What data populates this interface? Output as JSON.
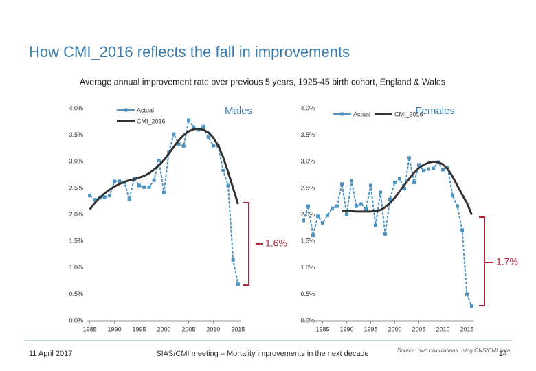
{
  "title": "How CMI_2016 reflects the fall in improvements",
  "subtitle": "Average annual improvement rate over previous 5 years, 1925-45 birth cohort, England & Wales",
  "chart_data": [
    {
      "type": "line",
      "title": "Males",
      "x": [
        1985,
        1986,
        1987,
        1988,
        1989,
        1990,
        1991,
        1992,
        1993,
        1994,
        1995,
        1996,
        1997,
        1998,
        1999,
        2000,
        2001,
        2002,
        2003,
        2004,
        2005,
        2006,
        2007,
        2008,
        2009,
        2010,
        2011,
        2012,
        2013,
        2014,
        2015
      ],
      "series": [
        {
          "name": "Actual",
          "color": "#4f93c2",
          "values": [
            2.36,
            2.28,
            2.32,
            2.33,
            2.36,
            2.63,
            2.63,
            2.61,
            2.29,
            2.68,
            2.55,
            2.52,
            2.52,
            2.65,
            3.02,
            2.42,
            3.17,
            3.52,
            3.33,
            3.29,
            3.78,
            3.65,
            3.6,
            3.66,
            3.46,
            3.3,
            3.29,
            2.83,
            2.55,
            1.15,
            0.69
          ]
        },
        {
          "name": "CMI_2016",
          "color": "#333333",
          "values": [
            2.1,
            2.22,
            2.32,
            2.4,
            2.47,
            2.53,
            2.58,
            2.62,
            2.65,
            2.67,
            2.7,
            2.73,
            2.78,
            2.85,
            2.93,
            3.03,
            3.15,
            3.28,
            3.4,
            3.5,
            3.57,
            3.61,
            3.62,
            3.6,
            3.55,
            3.45,
            3.3,
            3.08,
            2.8,
            2.5,
            2.2
          ]
        }
      ],
      "xlim": [
        1984.5,
        2015.5
      ],
      "xticks": [
        1985,
        1990,
        1995,
        2000,
        2005,
        2010,
        2015
      ],
      "ylim": [
        0,
        4
      ],
      "yticks": [
        {
          "value": 0,
          "label": "0.0%"
        },
        {
          "value": 0.5,
          "label": "0.5%"
        },
        {
          "value": 1,
          "label": "1.0%"
        },
        {
          "value": 1.5,
          "label": "1.5%"
        },
        {
          "value": 2,
          "label": "2.0%"
        },
        {
          "value": 2.5,
          "label": "2.5%"
        },
        {
          "value": 3,
          "label": "3.0%"
        },
        {
          "value": 3.5,
          "label": "3.5%"
        },
        {
          "value": 4,
          "label": "4.0%"
        }
      ],
      "annotation": "1.6%"
    },
    {
      "type": "line",
      "title": "Females",
      "x": [
        1981,
        1982,
        1983,
        1984,
        1985,
        1986,
        1987,
        1988,
        1989,
        1990,
        1991,
        1992,
        1993,
        1994,
        1995,
        1996,
        1997,
        1998,
        1999,
        2000,
        2001,
        2002,
        2003,
        2004,
        2005,
        2006,
        2007,
        2008,
        2009,
        2010,
        2011,
        2012,
        2013,
        2014,
        2015,
        2016
      ],
      "series": [
        {
          "name": "Actual",
          "color": "#4f93c2",
          "values": [
            1.89,
            2.16,
            1.61,
            1.97,
            1.84,
            1.99,
            2.12,
            2.16,
            2.58,
            2.01,
            2.64,
            2.16,
            2.2,
            2.11,
            2.55,
            1.8,
            2.42,
            1.64,
            2.29,
            2.61,
            2.68,
            2.49,
            3.07,
            2.61,
            2.94,
            2.83,
            2.86,
            2.87,
            2.99,
            2.85,
            2.89,
            2.36,
            2.16,
            1.71,
            0.5,
            0.28
          ]
        },
        {
          "name": "CMI_2016",
          "color": "#333333",
          "values": [
            null,
            null,
            null,
            null,
            null,
            null,
            null,
            null,
            2.07,
            2.07,
            2.07,
            2.06,
            2.06,
            2.06,
            2.06,
            2.07,
            2.09,
            2.14,
            2.22,
            2.32,
            2.44,
            2.56,
            2.68,
            2.79,
            2.88,
            2.94,
            2.98,
            3.0,
            2.99,
            2.95,
            2.86,
            2.72,
            2.55,
            2.38,
            2.22,
            2.0
          ]
        }
      ],
      "xlim": [
        1980.5,
        2016.5
      ],
      "xticks": [
        1985,
        1990,
        1995,
        2000,
        2005,
        2010,
        2015
      ],
      "ylim": [
        0,
        4
      ],
      "yticks": [
        {
          "value": 0,
          "label": "0.0%"
        },
        {
          "value": 0.5,
          "label": "0.5%"
        },
        {
          "value": 1,
          "label": "1.0%"
        },
        {
          "value": 1.5,
          "label": "1.5%"
        },
        {
          "value": 2,
          "label": "2.0%"
        },
        {
          "value": 2.5,
          "label": "2.5%"
        },
        {
          "value": 3,
          "label": "3.0%"
        },
        {
          "value": 3.5,
          "label": "3.5%"
        },
        {
          "value": 4,
          "label": "4.0%"
        }
      ],
      "annotation": "1.7%"
    }
  ],
  "footer": {
    "date": "11 April 2017",
    "event": "SIAS/CMI meeting – Mortality improvements in the next decade",
    "source": "Source: own calculations using ONS/CMI data",
    "page": "14"
  }
}
